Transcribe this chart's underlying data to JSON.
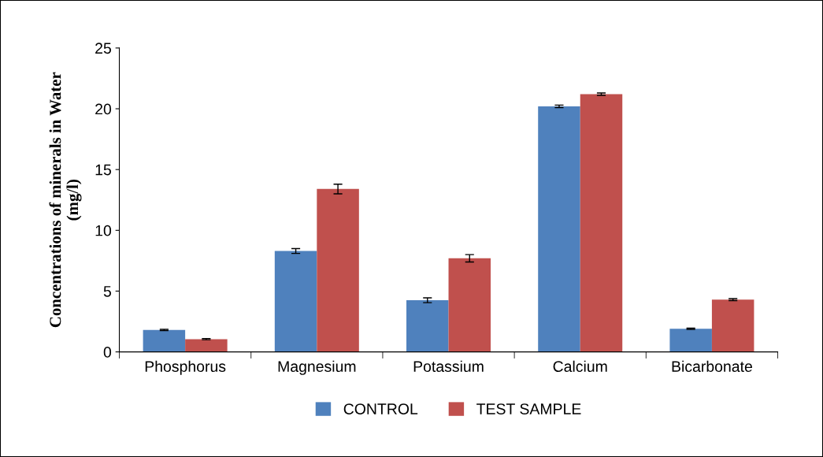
{
  "chart_data": {
    "type": "bar",
    "ylabel": "Concentrations of minerals in Water\n(mg/l)",
    "categories": [
      "Phosphorus",
      "Magnesium",
      "Potassium",
      "Calcium",
      "Bicarbonate"
    ],
    "series": [
      {
        "name": "CONTROL",
        "color": "#4f81bd",
        "values": [
          1.8,
          8.3,
          4.25,
          20.2,
          1.9
        ],
        "errors": [
          0.05,
          0.2,
          0.2,
          0.1,
          0.05
        ]
      },
      {
        "name": "TEST SAMPLE",
        "color": "#c0504d",
        "values": [
          1.05,
          13.4,
          7.7,
          21.2,
          4.3
        ],
        "errors": [
          0.05,
          0.4,
          0.3,
          0.1,
          0.08
        ]
      }
    ],
    "ylim": [
      0,
      25
    ],
    "yticks": [
      0,
      5,
      10,
      15,
      20,
      25
    ],
    "grid": false,
    "legend": "bottom"
  }
}
